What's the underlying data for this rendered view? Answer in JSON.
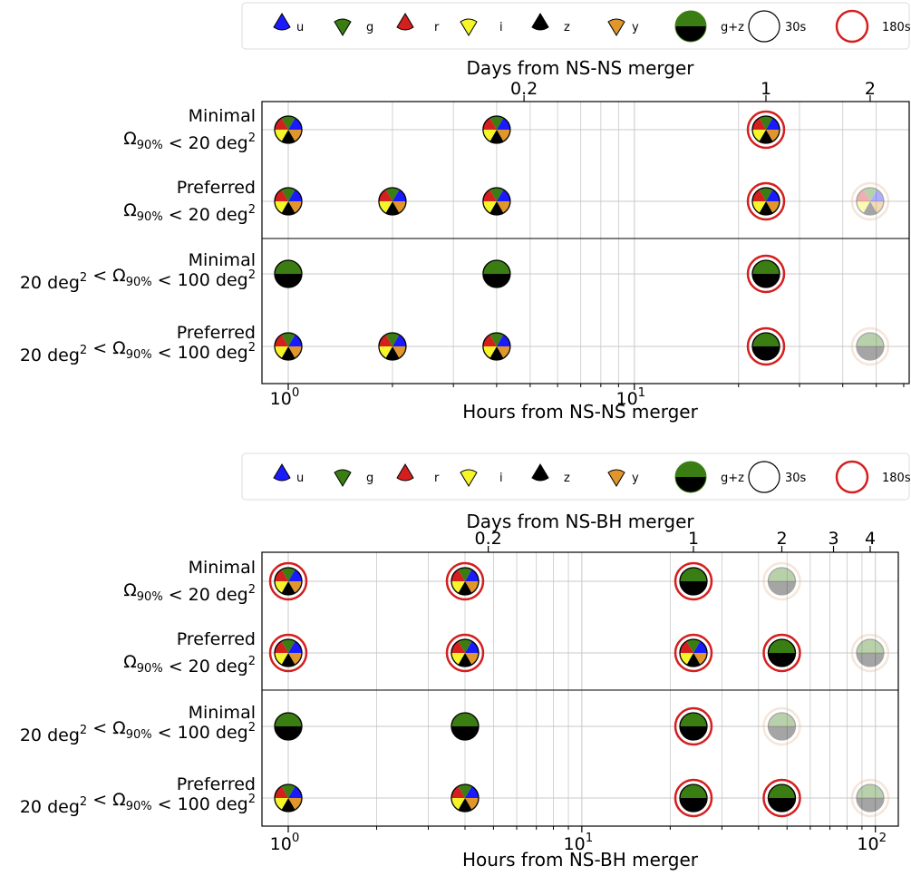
{
  "chart_data": [
    {
      "type": "scatter",
      "title": "",
      "xlabel": "Hours from NS-NS merger",
      "xlabel_top": "Days from NS-NS merger",
      "xscale": "log",
      "xlim": [
        0.85,
        58
      ],
      "x_ticks": [
        1,
        10
      ],
      "x_tick_labels": [
        "10^0",
        "10^1"
      ],
      "top_ticks_days": [
        0.2,
        1,
        2
      ],
      "top_tick_labels": [
        "0.2",
        "1",
        "2"
      ],
      "grid": true,
      "legend_position": "top",
      "rows": [
        {
          "label_top": "Minimal",
          "label_bottom": "Ω90% < 20 deg²"
        },
        {
          "label_top": "Preferred",
          "label_bottom": "Ω90% < 20 deg²"
        },
        {
          "label_top": "Minimal",
          "label_bottom": "20 deg² < Ω90% < 100 deg²"
        },
        {
          "label_top": "Preferred",
          "label_bottom": "20 deg² < Ω90% < 100 deg²"
        }
      ],
      "points": [
        {
          "row": 0,
          "hours": 1,
          "type": "ugrizy",
          "exposure": "30s",
          "faded": false
        },
        {
          "row": 0,
          "hours": 4,
          "type": "ugrizy",
          "exposure": "30s",
          "faded": false
        },
        {
          "row": 0,
          "hours": 24,
          "type": "ugrizy",
          "exposure": "180s",
          "faded": false
        },
        {
          "row": 1,
          "hours": 1,
          "type": "ugrizy",
          "exposure": "30s",
          "faded": false
        },
        {
          "row": 1,
          "hours": 2,
          "type": "ugrizy",
          "exposure": "30s",
          "faded": false
        },
        {
          "row": 1,
          "hours": 4,
          "type": "ugrizy",
          "exposure": "30s",
          "faded": false
        },
        {
          "row": 1,
          "hours": 24,
          "type": "ugrizy",
          "exposure": "180s",
          "faded": false
        },
        {
          "row": 1,
          "hours": 48,
          "type": "ugrizy",
          "exposure": "180s",
          "faded": true
        },
        {
          "row": 2,
          "hours": 1,
          "type": "gz",
          "exposure": "30s",
          "faded": false
        },
        {
          "row": 2,
          "hours": 4,
          "type": "gz",
          "exposure": "30s",
          "faded": false
        },
        {
          "row": 2,
          "hours": 24,
          "type": "gz",
          "exposure": "180s",
          "faded": false
        },
        {
          "row": 3,
          "hours": 1,
          "type": "ugrizy",
          "exposure": "30s",
          "faded": false
        },
        {
          "row": 3,
          "hours": 2,
          "type": "ugrizy",
          "exposure": "30s",
          "faded": false
        },
        {
          "row": 3,
          "hours": 4,
          "type": "ugrizy",
          "exposure": "30s",
          "faded": false
        },
        {
          "row": 3,
          "hours": 24,
          "type": "gz",
          "exposure": "180s",
          "faded": false
        },
        {
          "row": 3,
          "hours": 48,
          "type": "gz",
          "exposure": "180s",
          "faded": true
        }
      ]
    },
    {
      "type": "scatter",
      "title": "",
      "xlabel": "Hours from NS-BH merger",
      "xlabel_top": "Days from NS-BH merger",
      "xscale": "log",
      "xlim": [
        0.85,
        120
      ],
      "x_ticks": [
        1,
        10,
        100
      ],
      "x_tick_labels": [
        "10^0",
        "10^1",
        "10^2"
      ],
      "top_ticks_days": [
        0.2,
        1,
        2,
        3,
        4
      ],
      "top_tick_labels": [
        "0.2",
        "1",
        "2",
        "3",
        "4"
      ],
      "grid": true,
      "legend_position": "top",
      "rows": [
        {
          "label_top": "Minimal",
          "label_bottom": "Ω90% < 20 deg²"
        },
        {
          "label_top": "Preferred",
          "label_bottom": "Ω90% < 20 deg²"
        },
        {
          "label_top": "Minimal",
          "label_bottom": "20 deg² < Ω90% < 100 deg²"
        },
        {
          "label_top": "Preferred",
          "label_bottom": "20 deg² < Ω90% < 100 deg²"
        }
      ],
      "points": [
        {
          "row": 0,
          "hours": 1,
          "type": "ugrizy",
          "exposure": "180s",
          "faded": false
        },
        {
          "row": 0,
          "hours": 4,
          "type": "ugrizy",
          "exposure": "180s",
          "faded": false
        },
        {
          "row": 0,
          "hours": 24,
          "type": "gz",
          "exposure": "180s",
          "faded": false
        },
        {
          "row": 0,
          "hours": 48,
          "type": "gz",
          "exposure": "180s",
          "faded": true
        },
        {
          "row": 1,
          "hours": 1,
          "type": "ugrizy",
          "exposure": "180s",
          "faded": false
        },
        {
          "row": 1,
          "hours": 4,
          "type": "ugrizy",
          "exposure": "180s",
          "faded": false
        },
        {
          "row": 1,
          "hours": 24,
          "type": "ugrizy",
          "exposure": "180s",
          "faded": false
        },
        {
          "row": 1,
          "hours": 48,
          "type": "gz",
          "exposure": "180s",
          "faded": false
        },
        {
          "row": 1,
          "hours": 96,
          "type": "gz",
          "exposure": "180s",
          "faded": true
        },
        {
          "row": 2,
          "hours": 1,
          "type": "gz",
          "exposure": "30s",
          "faded": false
        },
        {
          "row": 2,
          "hours": 4,
          "type": "gz",
          "exposure": "30s",
          "faded": false
        },
        {
          "row": 2,
          "hours": 24,
          "type": "gz",
          "exposure": "180s",
          "faded": false
        },
        {
          "row": 2,
          "hours": 48,
          "type": "gz",
          "exposure": "180s",
          "faded": true
        },
        {
          "row": 3,
          "hours": 1,
          "type": "ugrizy",
          "exposure": "30s",
          "faded": false
        },
        {
          "row": 3,
          "hours": 4,
          "type": "ugrizy",
          "exposure": "30s",
          "faded": false
        },
        {
          "row": 3,
          "hours": 24,
          "type": "gz",
          "exposure": "180s",
          "faded": false
        },
        {
          "row": 3,
          "hours": 48,
          "type": "gz",
          "exposure": "180s",
          "faded": false
        },
        {
          "row": 3,
          "hours": 96,
          "type": "gz",
          "exposure": "180s",
          "faded": true
        }
      ]
    }
  ],
  "legend": {
    "items": [
      {
        "key": "u",
        "label": "u",
        "color": "#1a1aff",
        "icon": "triangle-up"
      },
      {
        "key": "g",
        "label": "g",
        "color": "#3a7d12",
        "icon": "triangle-down"
      },
      {
        "key": "r",
        "label": "r",
        "color": "#d41f1f",
        "icon": "triangle-up"
      },
      {
        "key": "i",
        "label": "i",
        "color": "#f5f52a",
        "icon": "triangle-down"
      },
      {
        "key": "z",
        "label": "z",
        "color": "#000000",
        "icon": "triangle-up"
      },
      {
        "key": "y",
        "label": "y",
        "color": "#e0962a",
        "icon": "triangle-down"
      },
      {
        "key": "gz",
        "label": "g+z",
        "color": "#3a7d12",
        "icon": "half-circle"
      },
      {
        "key": "30s",
        "label": "30s",
        "color": "#000000",
        "icon": "circle-outline"
      },
      {
        "key": "180s",
        "label": "180s",
        "color": "#d41f1f",
        "icon": "circle-outline"
      }
    ]
  },
  "colors": {
    "u": "#1a1aff",
    "g": "#3a7d12",
    "r": "#d41f1f",
    "i": "#f5f52a",
    "z": "#000000",
    "y": "#e0962a",
    "ring180": "#d41f1f",
    "ring_faded": "#e0b896"
  }
}
